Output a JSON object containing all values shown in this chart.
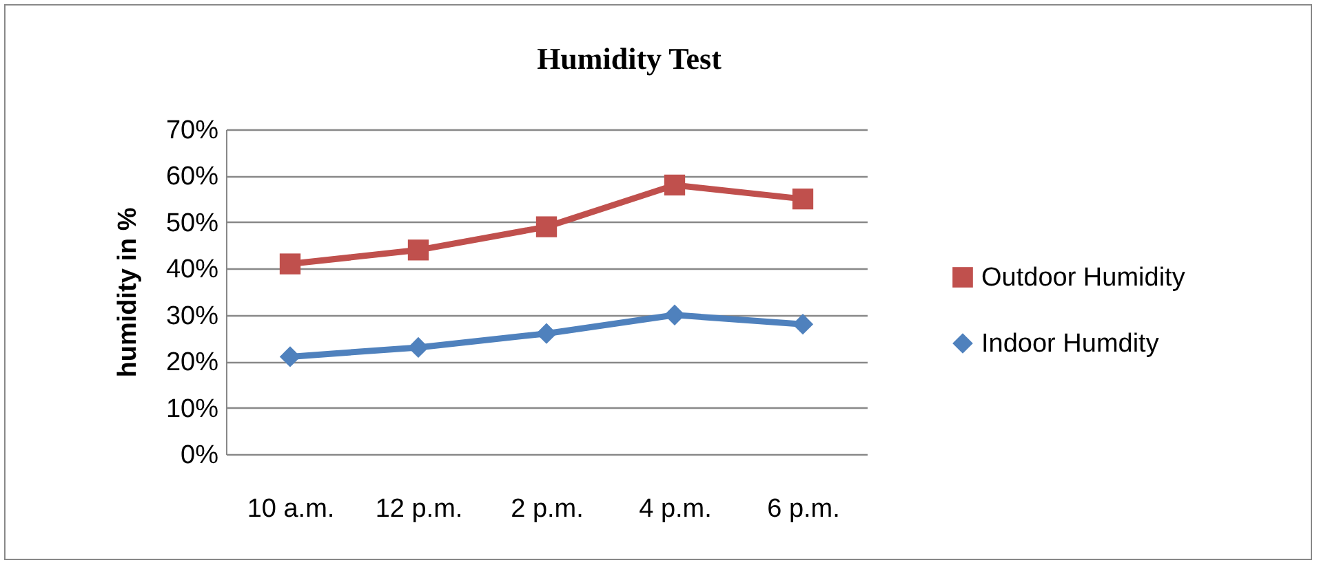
{
  "chart_data": {
    "type": "line",
    "title": "Humidity Test",
    "ylabel": "humidity in %",
    "categories": [
      "10 a.m.",
      "12 p.m.",
      "2 p.m.",
      "4 p.m.",
      "6 p.m."
    ],
    "series": [
      {
        "name": "Outdoor Humidity",
        "color": "#c0504d",
        "marker": "square",
        "values": [
          41,
          44,
          49,
          58,
          55
        ]
      },
      {
        "name": "Indoor Humdity",
        "color": "#4f81bd",
        "marker": "diamond",
        "values": [
          21,
          23,
          26,
          30,
          28
        ]
      }
    ],
    "ylim": [
      0,
      70
    ],
    "yticks": [
      {
        "value": 0,
        "label": "0%"
      },
      {
        "value": 10,
        "label": "10%"
      },
      {
        "value": 20,
        "label": "20%"
      },
      {
        "value": 30,
        "label": "30%"
      },
      {
        "value": 40,
        "label": "40%"
      },
      {
        "value": 50,
        "label": "50%"
      },
      {
        "value": 60,
        "label": "60%"
      },
      {
        "value": 70,
        "label": "70%"
      }
    ],
    "grid": "y",
    "legend": "right",
    "line_style": "solid"
  }
}
